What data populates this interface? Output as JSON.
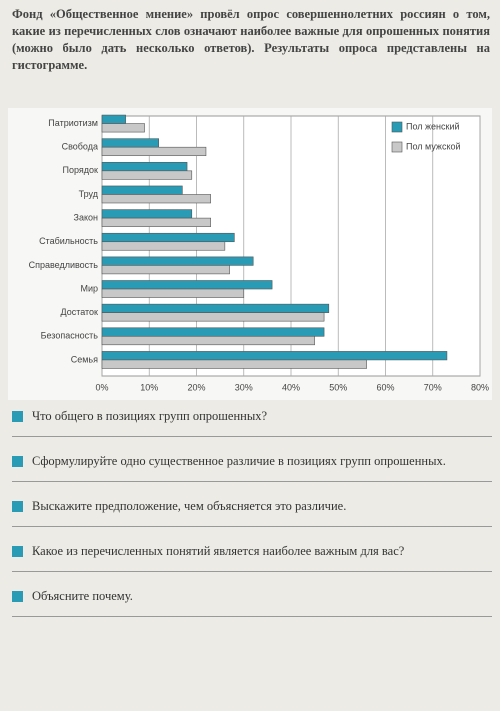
{
  "intro": "Фонд «Общественное мнение» провёл опрос совершеннолетних россиян о том, какие из перечисленных слов означают наиболее важные для опрошенных понятия (можно было дать несколько ответов). Результаты опроса представлены на гистограмме.",
  "chart_data": {
    "type": "barh",
    "categories": [
      "Патриотизм",
      "Свобода",
      "Порядок",
      "Труд",
      "Закон",
      "Стабильность",
      "Справедливость",
      "Мир",
      "Достаток",
      "Безопасность",
      "Семья"
    ],
    "series": [
      {
        "name": "Пол женский",
        "color": "#2a9bb5",
        "values": [
          5,
          12,
          18,
          17,
          19,
          28,
          32,
          36,
          48,
          47,
          73
        ]
      },
      {
        "name": "Пол мужской",
        "color": "#c8c8c8",
        "values": [
          9,
          22,
          19,
          23,
          23,
          26,
          27,
          30,
          47,
          45,
          56
        ]
      }
    ],
    "xlim": [
      0,
      80
    ],
    "xticks": [
      {
        "value": 0,
        "label": "0%"
      },
      {
        "value": 10,
        "label": "10%"
      },
      {
        "value": 20,
        "label": "20%"
      },
      {
        "value": 30,
        "label": "30%"
      },
      {
        "value": 40,
        "label": "40%"
      },
      {
        "value": 50,
        "label": "50%"
      },
      {
        "value": 60,
        "label": "60%"
      },
      {
        "value": 70,
        "label": "70%"
      },
      {
        "value": 80,
        "label": "80%"
      }
    ],
    "grid": true,
    "legend": "upper right"
  },
  "questions": [
    "Что общего в позициях групп опрошенных?",
    "Сформулируйте одно существенное различие в позициях групп опрошенных.",
    "Выскажите предположение, чем объясняется это различие.",
    "Какое из перечисленных понятий является наиболее важным для вас?",
    "Объясните почему."
  ]
}
